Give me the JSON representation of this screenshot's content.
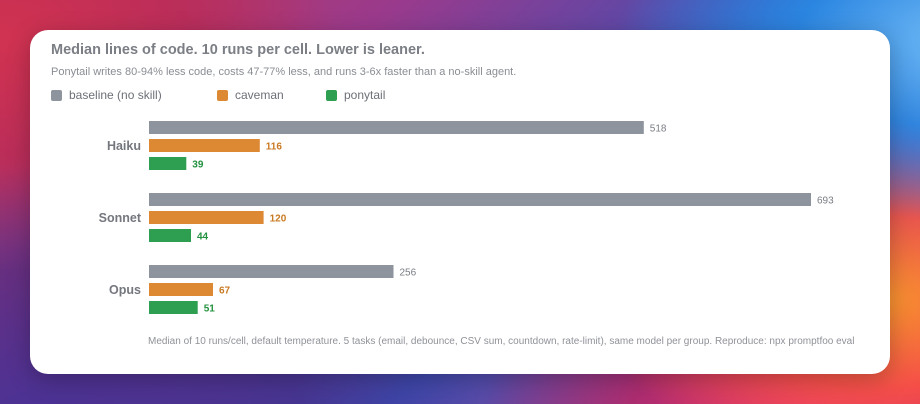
{
  "card": {
    "title": "Median lines of code. 10 runs per cell. Lower is leaner.",
    "subtitle": "Ponytail writes 80-94% less code, costs 47-77% less, and runs 3-6x faster than a no-skill agent.",
    "footnote": "Median of 10 runs/cell, default temperature. 5 tasks (email, debounce, CSV sum, countdown, rate-limit), same model per group. Reproduce: npx promptfoo eval"
  },
  "legend": [
    {
      "label": "baseline (no skill)",
      "color": "#8e949d"
    },
    {
      "label": "caveman",
      "color": "#dd8833"
    },
    {
      "label": "ponytail",
      "color": "#2e9e50"
    }
  ],
  "chart_data": {
    "type": "bar",
    "orientation": "horizontal",
    "title": "Median lines of code. 10 runs per cell. Lower is leaner.",
    "subtitle": "Ponytail writes 80-94% less code, costs 47-77% less, and runs 3-6x faster than a no-skill agent.",
    "categories": [
      "Haiku",
      "Sonnet",
      "Opus"
    ],
    "series": [
      {
        "name": "baseline (no skill)",
        "color": "#8e949d",
        "label_color": "#7a7d84",
        "values": [
          518,
          693,
          256
        ]
      },
      {
        "name": "caveman",
        "color": "#dd8833",
        "label_color": "#c97a22",
        "values": [
          116,
          120,
          67
        ]
      },
      {
        "name": "ponytail",
        "color": "#2e9e50",
        "label_color": "#23913f",
        "values": [
          39,
          44,
          51
        ]
      }
    ],
    "xlim": [
      0,
      693
    ],
    "grid": false,
    "legend_position": "top-left"
  }
}
